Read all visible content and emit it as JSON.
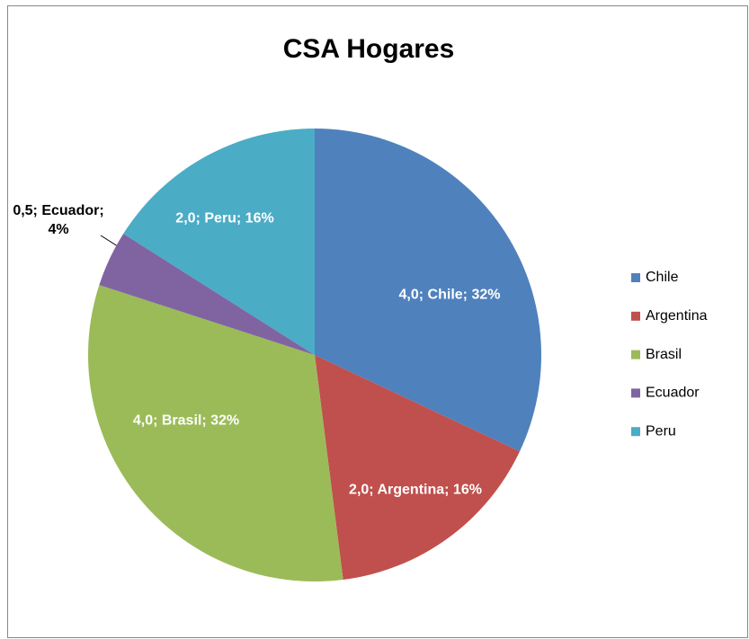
{
  "chart_data": {
    "type": "pie",
    "title": "CSA Hogares",
    "categories": [
      "Chile",
      "Argentina",
      "Brasil",
      "Ecuador",
      "Peru"
    ],
    "values": [
      4.0,
      2.0,
      4.0,
      0.5,
      2.0
    ],
    "value_labels": [
      "4,0; Chile; 32%",
      "2,0; Argentina; 16%",
      "4,0; Brasil; 32%",
      "0,5; Ecuador; 4%",
      "2,0; Peru; 16%"
    ],
    "colors": [
      "#4f81bd",
      "#c0504d",
      "#9bbb59",
      "#8064a2",
      "#4bacc6"
    ],
    "legend": "right"
  }
}
